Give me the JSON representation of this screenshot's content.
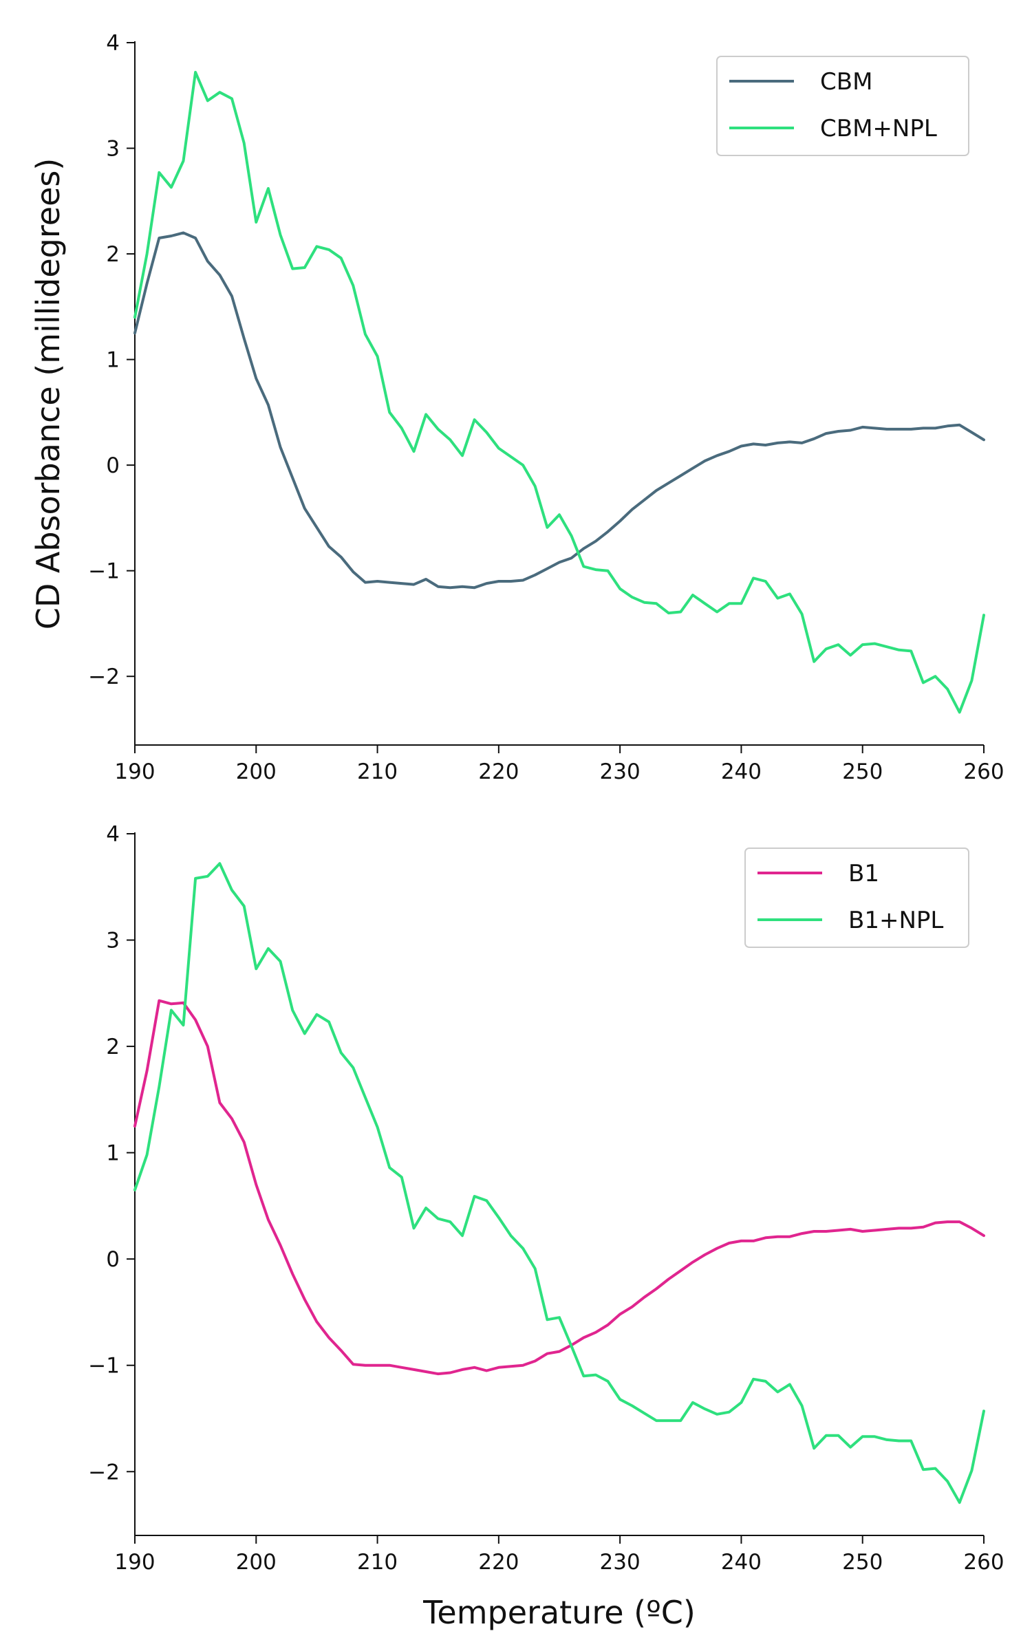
{
  "chart_data": [
    {
      "type": "line",
      "title": "",
      "xlabel": "",
      "ylabel": "CD Absorbance (millidegrees)",
      "xlim": [
        190,
        260
      ],
      "ylim": [
        -2.65,
        4
      ],
      "xticks": [
        "190",
        "200",
        "210",
        "220",
        "230",
        "240",
        "250",
        "260"
      ],
      "yticks": [
        "−2",
        "−1",
        "0",
        "1",
        "2",
        "3",
        "4"
      ],
      "legend": "top-right",
      "grid": false,
      "series": [
        {
          "name": "CBM",
          "color": "#4a6b7d",
          "x": [
            190,
            191,
            192,
            193,
            194,
            195,
            196,
            197,
            198,
            199,
            200,
            201,
            202,
            203,
            204,
            205,
            206,
            207,
            208,
            209,
            210,
            211,
            212,
            213,
            214,
            215,
            216,
            217,
            218,
            219,
            220,
            221,
            222,
            223,
            224,
            225,
            226,
            227,
            228,
            229,
            230,
            231,
            232,
            233,
            234,
            235,
            236,
            237,
            238,
            239,
            240,
            241,
            242,
            243,
            244,
            245,
            246,
            247,
            248,
            249,
            250,
            251,
            252,
            253,
            254,
            255,
            256,
            257,
            258,
            259,
            260
          ],
          "y": [
            1.25,
            1.72,
            2.15,
            2.17,
            2.2,
            2.15,
            1.93,
            1.8,
            1.6,
            1.2,
            0.82,
            0.57,
            0.17,
            -0.12,
            -0.41,
            -0.59,
            -0.77,
            -0.87,
            -1.01,
            -1.11,
            -1.1,
            -1.11,
            -1.12,
            -1.13,
            -1.08,
            -1.15,
            -1.16,
            -1.15,
            -1.16,
            -1.12,
            -1.1,
            -1.1,
            -1.09,
            -1.04,
            -0.98,
            -0.92,
            -0.88,
            -0.79,
            -0.72,
            -0.63,
            -0.53,
            -0.42,
            -0.33,
            -0.24,
            -0.17,
            -0.1,
            -0.03,
            0.04,
            0.09,
            0.13,
            0.18,
            0.2,
            0.19,
            0.21,
            0.22,
            0.21,
            0.25,
            0.3,
            0.32,
            0.33,
            0.36,
            0.35,
            0.34,
            0.34,
            0.34,
            0.35,
            0.35,
            0.37,
            0.38,
            0.31,
            0.24
          ]
        },
        {
          "name": "CBM+NPL",
          "color": "#2ee07e",
          "x": [
            190,
            191,
            192,
            193,
            194,
            195,
            196,
            197,
            198,
            199,
            200,
            201,
            202,
            203,
            204,
            205,
            206,
            207,
            208,
            209,
            210,
            211,
            212,
            213,
            214,
            215,
            216,
            217,
            218,
            219,
            220,
            221,
            222,
            223,
            224,
            225,
            226,
            227,
            228,
            229,
            230,
            231,
            232,
            233,
            234,
            235,
            236,
            237,
            238,
            239,
            240,
            241,
            242,
            243,
            244,
            245,
            246,
            247,
            248,
            249,
            250,
            251,
            252,
            253,
            254,
            255,
            256,
            257,
            258,
            259,
            260
          ],
          "y": [
            1.4,
            2.0,
            2.77,
            2.63,
            2.88,
            3.72,
            3.45,
            3.53,
            3.47,
            3.05,
            2.3,
            2.62,
            2.18,
            1.86,
            1.87,
            2.07,
            2.04,
            1.96,
            1.7,
            1.24,
            1.03,
            0.5,
            0.35,
            0.13,
            0.48,
            0.34,
            0.24,
            0.09,
            0.43,
            0.31,
            0.16,
            0.08,
            0.0,
            -0.2,
            -0.59,
            -0.47,
            -0.67,
            -0.96,
            -0.99,
            -1.0,
            -1.17,
            -1.25,
            -1.3,
            -1.31,
            -1.4,
            -1.39,
            -1.23,
            -1.31,
            -1.39,
            -1.31,
            -1.31,
            -1.07,
            -1.1,
            -1.26,
            -1.22,
            -1.41,
            -1.86,
            -1.74,
            -1.7,
            -1.8,
            -1.7,
            -1.69,
            -1.72,
            -1.75,
            -1.76,
            -2.06,
            -2.0,
            -2.12,
            -2.34,
            -2.04,
            -1.42
          ]
        }
      ]
    },
    {
      "type": "line",
      "title": "",
      "xlabel": "Temperature (ºC)",
      "ylabel": "",
      "xlim": [
        190,
        260
      ],
      "ylim": [
        -2.6,
        4
      ],
      "xticks": [
        "190",
        "200",
        "210",
        "220",
        "230",
        "240",
        "250",
        "260"
      ],
      "yticks": [
        "−2",
        "−1",
        "0",
        "1",
        "2",
        "3",
        "4"
      ],
      "legend": "top-right",
      "grid": false,
      "series": [
        {
          "name": "B1",
          "color": "#e0258f",
          "x": [
            190,
            191,
            192,
            193,
            194,
            195,
            196,
            197,
            198,
            199,
            200,
            201,
            202,
            203,
            204,
            205,
            206,
            207,
            208,
            209,
            210,
            211,
            212,
            213,
            214,
            215,
            216,
            217,
            218,
            219,
            220,
            221,
            222,
            223,
            224,
            225,
            226,
            227,
            228,
            229,
            230,
            231,
            232,
            233,
            234,
            235,
            236,
            237,
            238,
            239,
            240,
            241,
            242,
            243,
            244,
            245,
            246,
            247,
            248,
            249,
            250,
            251,
            252,
            253,
            254,
            255,
            256,
            257,
            258,
            259,
            260
          ],
          "y": [
            1.25,
            1.77,
            2.43,
            2.4,
            2.41,
            2.25,
            2.0,
            1.47,
            1.32,
            1.1,
            0.7,
            0.37,
            0.13,
            -0.14,
            -0.38,
            -0.59,
            -0.74,
            -0.86,
            -0.99,
            -1.0,
            -1.0,
            -1.0,
            -1.02,
            -1.04,
            -1.06,
            -1.08,
            -1.07,
            -1.04,
            -1.02,
            -1.05,
            -1.02,
            -1.01,
            -1.0,
            -0.96,
            -0.89,
            -0.87,
            -0.81,
            -0.74,
            -0.69,
            -0.62,
            -0.52,
            -0.45,
            -0.36,
            -0.28,
            -0.19,
            -0.11,
            -0.03,
            0.04,
            0.1,
            0.15,
            0.17,
            0.17,
            0.2,
            0.21,
            0.21,
            0.24,
            0.26,
            0.26,
            0.27,
            0.28,
            0.26,
            0.27,
            0.28,
            0.29,
            0.29,
            0.3,
            0.34,
            0.35,
            0.35,
            0.29,
            0.22
          ]
        },
        {
          "name": "B1+NPL",
          "color": "#2ee07e",
          "x": [
            190,
            191,
            192,
            193,
            194,
            195,
            196,
            197,
            198,
            199,
            200,
            201,
            202,
            203,
            204,
            205,
            206,
            207,
            208,
            209,
            210,
            211,
            212,
            213,
            214,
            215,
            216,
            217,
            218,
            219,
            220,
            221,
            222,
            223,
            224,
            225,
            226,
            227,
            228,
            229,
            230,
            231,
            232,
            233,
            234,
            235,
            236,
            237,
            238,
            239,
            240,
            241,
            242,
            243,
            244,
            245,
            246,
            247,
            248,
            249,
            250,
            251,
            252,
            253,
            254,
            255,
            256,
            257,
            258,
            259,
            260
          ],
          "y": [
            0.65,
            0.98,
            1.62,
            2.34,
            2.2,
            3.58,
            3.6,
            3.72,
            3.47,
            3.32,
            2.73,
            2.92,
            2.8,
            2.34,
            2.12,
            2.3,
            2.23,
            1.94,
            1.8,
            1.52,
            1.24,
            0.86,
            0.77,
            0.29,
            0.48,
            0.38,
            0.35,
            0.22,
            0.59,
            0.55,
            0.39,
            0.22,
            0.1,
            -0.09,
            -0.57,
            -0.55,
            -0.82,
            -1.1,
            -1.09,
            -1.15,
            -1.32,
            -1.38,
            -1.45,
            -1.52,
            -1.52,
            -1.52,
            -1.35,
            -1.41,
            -1.46,
            -1.44,
            -1.35,
            -1.13,
            -1.15,
            -1.25,
            -1.18,
            -1.38,
            -1.78,
            -1.66,
            -1.66,
            -1.77,
            -1.67,
            -1.67,
            -1.7,
            -1.71,
            -1.71,
            -1.98,
            -1.97,
            -2.09,
            -2.29,
            -1.99,
            -1.43
          ]
        }
      ]
    }
  ]
}
